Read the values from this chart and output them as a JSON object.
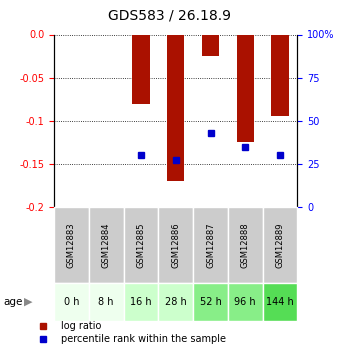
{
  "title": "GDS583 / 26.18.9",
  "categories": [
    "GSM12883",
    "GSM12884",
    "GSM12885",
    "GSM12886",
    "GSM12887",
    "GSM12888",
    "GSM12889"
  ],
  "age_labels": [
    "0 h",
    "8 h",
    "16 h",
    "28 h",
    "52 h",
    "96 h",
    "144 h"
  ],
  "log_ratio": [
    0.0,
    0.0,
    -0.08,
    -0.17,
    -0.025,
    -0.125,
    -0.095
  ],
  "percentile_rank": [
    null,
    null,
    30,
    27,
    43,
    35,
    30
  ],
  "ylim_left": [
    -0.2,
    0.0
  ],
  "ylim_right": [
    0,
    100
  ],
  "yticks_left": [
    0.0,
    -0.05,
    -0.1,
    -0.15,
    -0.2
  ],
  "yticks_right": [
    0,
    25,
    50,
    75,
    100
  ],
  "bar_color": "#aa1100",
  "percentile_color": "#0000cc",
  "bg_color_sample": "#cccccc",
  "age_bg_colors": [
    "#eeffee",
    "#eeffee",
    "#ccffcc",
    "#ccffcc",
    "#88ee88",
    "#88ee88",
    "#55dd55"
  ],
  "title_fontsize": 10,
  "tick_fontsize": 7,
  "bar_width": 0.5,
  "legend_label_ratio": "log ratio",
  "legend_label_pct": "percentile rank within the sample"
}
